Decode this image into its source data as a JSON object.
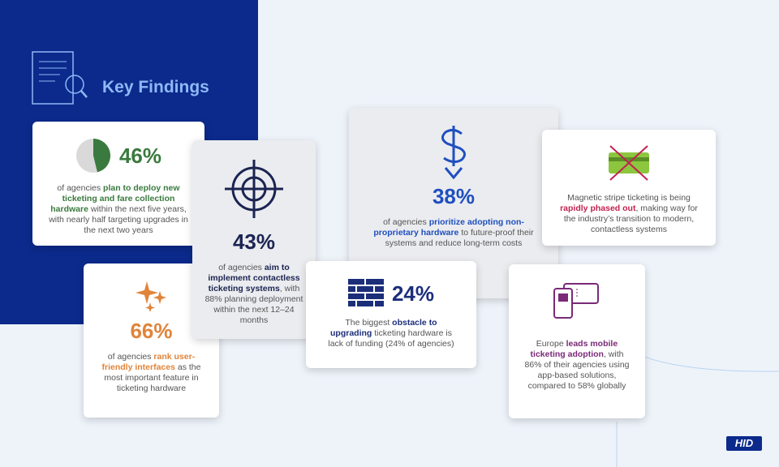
{
  "header": {
    "title": "Key Findings"
  },
  "cards": [
    {
      "stat": "46%",
      "accent": "#3a7a3e",
      "text": [
        {
          "t": "of agencies "
        },
        {
          "t": "plan to deploy new ticketing and fare collection hardware",
          "strong": true
        },
        {
          "t": " within the next five years, with nearly half targeting upgrades in the next two years"
        }
      ]
    },
    {
      "stat": "43%",
      "accent": "#1b2452",
      "text": [
        {
          "t": "of agencies "
        },
        {
          "t": "aim to implement contactless ticketing systems",
          "strong": true
        },
        {
          "t": ", with 88% planning deployment within the next 12–24 months"
        }
      ]
    },
    {
      "stat": "38%",
      "accent": "#1f4fbf",
      "text": [
        {
          "t": "of agencies "
        },
        {
          "t": "prioritize adopting non-proprietary hardware",
          "strong": true
        },
        {
          "t": " to future-proof their systems and reduce long-term costs"
        }
      ]
    },
    {
      "accent": "#c2214f",
      "text": [
        {
          "t": "Magnetic stripe ticketing is being "
        },
        {
          "t": "rapidly phased out",
          "strong": true
        },
        {
          "t": ", making way for the industry’s transition to modern, contactless systems"
        }
      ]
    },
    {
      "stat": "66%",
      "accent": "#e0843a",
      "text": [
        {
          "t": "of agencies "
        },
        {
          "t": "rank user-friendly interfaces",
          "strong": true
        },
        {
          "t": " as the most important feature in ticketing hardware"
        }
      ]
    },
    {
      "stat": "24%",
      "accent": "#1c2e7a",
      "text": [
        {
          "t": "The biggest "
        },
        {
          "t": "obstacle to upgrading",
          "strong": true
        },
        {
          "t": " ticketing hardware is lack of funding (24% of agencies)"
        }
      ]
    },
    {
      "accent": "#7a2a78",
      "text": [
        {
          "t": "Europe "
        },
        {
          "t": "leads mobile ticketing adoption",
          "strong": true
        },
        {
          "t": ", with 86% of their agencies using app-based solutions, compared to 58% globally"
        }
      ]
    }
  ],
  "logo": "HID"
}
